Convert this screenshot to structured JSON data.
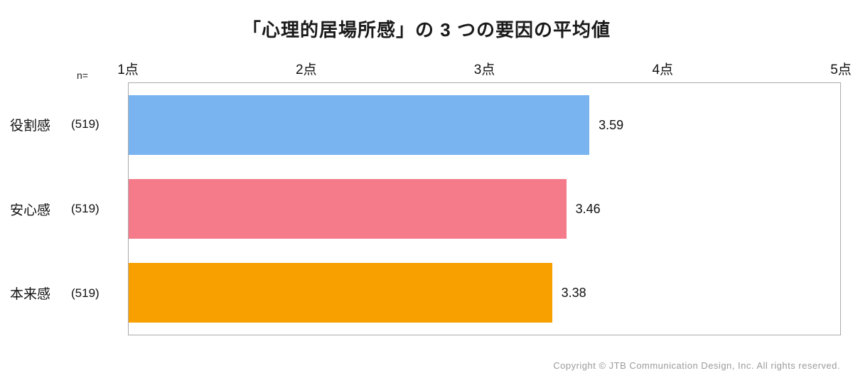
{
  "title": "「心理的居場所感」の 3 つの要因の平均値",
  "n_label": "n=",
  "axis": {
    "ticks": [
      "1点",
      "2点",
      "3点",
      "4点",
      "5点"
    ],
    "min": 1,
    "max": 5
  },
  "footer": "Copyright © JTB Communication Design, Inc. All rights reserved.",
  "chart_data": {
    "type": "bar",
    "orientation": "horizontal",
    "title": "「心理的居場所感」の 3 つの要因の平均値",
    "categories": [
      "役割感",
      "安心感",
      "本来感"
    ],
    "n": [
      "(519)",
      "(519)",
      "(519)"
    ],
    "values": [
      3.59,
      3.46,
      3.38
    ],
    "value_labels": [
      "3.59",
      "3.46",
      "3.38"
    ],
    "colors": [
      "#79b4f0",
      "#f57a8a",
      "#f7a000"
    ],
    "xlim": [
      1,
      5
    ],
    "xlabel": "点",
    "ylabel": "",
    "grid": false,
    "legend": "none"
  }
}
